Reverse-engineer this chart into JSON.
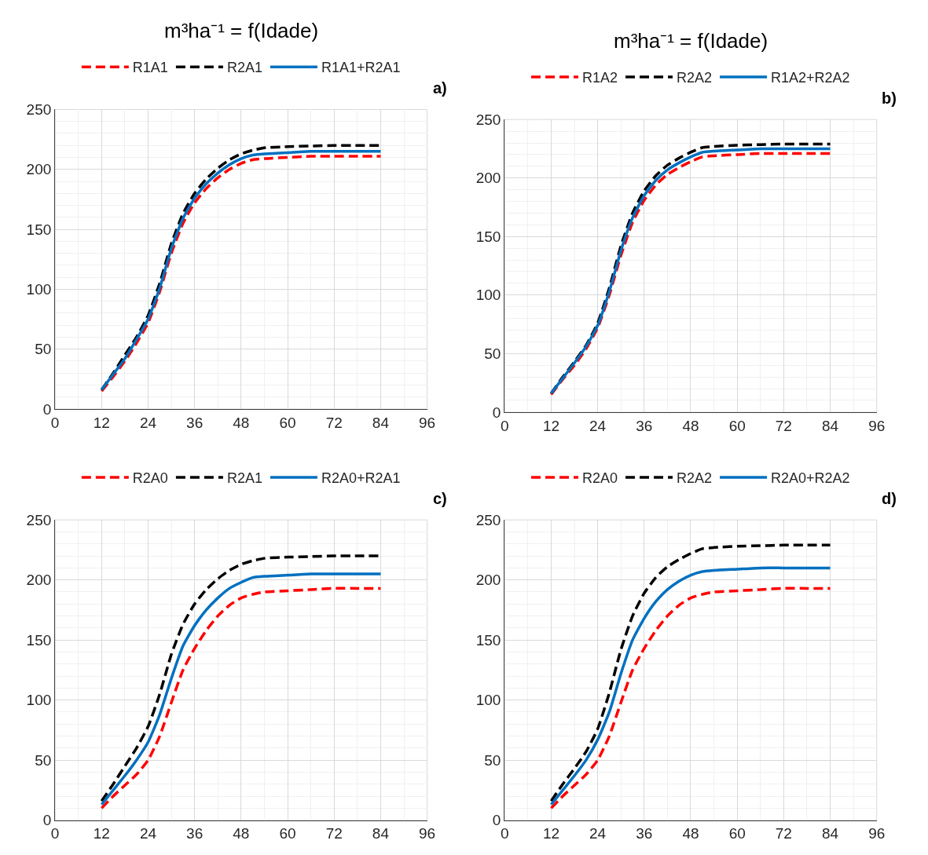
{
  "chart_data": [
    {
      "type": "line",
      "title": "m³ha⁻¹ = f(Idade)",
      "annotations": [
        "a)"
      ],
      "legend": "top",
      "grid": true,
      "line_style": "solid",
      "x": [
        12,
        15,
        18,
        21,
        24,
        27,
        30,
        33,
        36,
        39,
        42,
        45,
        48,
        51,
        54,
        60,
        66,
        72,
        78,
        84
      ],
      "xlim": [
        0,
        96
      ],
      "xticks": [
        0,
        12,
        24,
        36,
        48,
        60,
        72,
        84,
        96
      ],
      "ylim": [
        0,
        250
      ],
      "yticks": [
        0,
        50,
        100,
        150,
        200,
        250
      ],
      "series": [
        {
          "name": "R1A1",
          "color": "#ff0000",
          "line_style": "dashed",
          "values": [
            15,
            27,
            40,
            55,
            72,
            98,
            130,
            155,
            172,
            184,
            193,
            200,
            205,
            208,
            209,
            210,
            211,
            211,
            211,
            211
          ]
        },
        {
          "name": "R2A1",
          "color": "#000000",
          "line_style": "dashed",
          "values": [
            16,
            30,
            45,
            60,
            78,
            105,
            138,
            163,
            180,
            192,
            201,
            208,
            213,
            216,
            218,
            219,
            219.5,
            220,
            220,
            220
          ]
        },
        {
          "name": "R1A1+R2A1",
          "color": "#0070c0",
          "values": [
            16,
            29,
            42,
            58,
            75,
            101,
            134,
            159,
            176,
            188,
            197,
            204,
            209,
            212,
            213,
            214,
            215,
            215,
            215,
            215
          ]
        }
      ]
    },
    {
      "type": "line",
      "title": "m³ha⁻¹ = f(Idade)",
      "annotations": [
        "b)"
      ],
      "legend": "top",
      "grid": true,
      "line_style": "solid",
      "x": [
        12,
        15,
        18,
        21,
        24,
        27,
        30,
        33,
        36,
        39,
        42,
        45,
        48,
        51,
        54,
        60,
        66,
        72,
        78,
        84
      ],
      "xlim": [
        0,
        96
      ],
      "xticks": [
        0,
        12,
        24,
        36,
        48,
        60,
        72,
        84,
        96
      ],
      "ylim": [
        0,
        250
      ],
      "yticks": [
        0,
        50,
        100,
        150,
        200,
        250
      ],
      "series": [
        {
          "name": "R1A2",
          "color": "#ff0000",
          "line_style": "dashed",
          "values": [
            15,
            28,
            40,
            54,
            72,
            100,
            134,
            162,
            181,
            194,
            203,
            209,
            214,
            218,
            219,
            220,
            221,
            221,
            221,
            221
          ]
        },
        {
          "name": "R2A2",
          "color": "#000000",
          "line_style": "dashed",
          "values": [
            16,
            30,
            43,
            57,
            76,
            106,
            142,
            170,
            189,
            202,
            211,
            217,
            222,
            226,
            227,
            228,
            228.5,
            229,
            229,
            229
          ]
        },
        {
          "name": "R1A2+R2A2",
          "color": "#0070c0",
          "values": [
            16,
            29,
            42,
            56,
            74,
            103,
            138,
            166,
            185,
            198,
            207,
            213,
            218,
            222,
            223,
            224,
            225,
            225,
            225,
            225
          ]
        }
      ]
    },
    {
      "type": "line",
      "annotations": [
        "c)"
      ],
      "legend": "top",
      "grid": true,
      "line_style": "solid",
      "x": [
        12,
        15,
        18,
        21,
        24,
        27,
        30,
        33,
        36,
        39,
        42,
        45,
        48,
        51,
        54,
        60,
        66,
        72,
        78,
        84
      ],
      "xlim": [
        0,
        96
      ],
      "xticks": [
        0,
        12,
        24,
        36,
        48,
        60,
        72,
        84,
        96
      ],
      "ylim": [
        0,
        250
      ],
      "yticks": [
        0,
        50,
        100,
        150,
        200,
        250
      ],
      "series": [
        {
          "name": "R2A0",
          "color": "#ff0000",
          "line_style": "dashed",
          "values": [
            10,
            20,
            29,
            38,
            50,
            70,
            98,
            125,
            143,
            158,
            170,
            179,
            185,
            188,
            190,
            191,
            192,
            193,
            193,
            193
          ]
        },
        {
          "name": "R2A1",
          "color": "#000000",
          "line_style": "dashed",
          "values": [
            16,
            30,
            45,
            60,
            78,
            105,
            138,
            163,
            180,
            192,
            201,
            208,
            213,
            216,
            218,
            219,
            219.5,
            220,
            220,
            220
          ]
        },
        {
          "name": "R2A0+R2A1",
          "color": "#0070c0",
          "values": [
            13,
            25,
            37,
            50,
            65,
            88,
            118,
            145,
            162,
            175,
            185,
            193,
            198,
            202,
            203,
            204,
            205,
            205,
            205,
            205
          ]
        }
      ]
    },
    {
      "type": "line",
      "annotations": [
        "d)"
      ],
      "legend": "top",
      "grid": true,
      "line_style": "solid",
      "x": [
        12,
        15,
        18,
        21,
        24,
        27,
        30,
        33,
        36,
        39,
        42,
        45,
        48,
        51,
        54,
        60,
        66,
        72,
        78,
        84
      ],
      "xlim": [
        0,
        96
      ],
      "xticks": [
        0,
        12,
        24,
        36,
        48,
        60,
        72,
        84,
        96
      ],
      "ylim": [
        0,
        250
      ],
      "yticks": [
        0,
        50,
        100,
        150,
        200,
        250
      ],
      "series": [
        {
          "name": "R2A0",
          "color": "#ff0000",
          "line_style": "dashed",
          "values": [
            10,
            20,
            29,
            38,
            50,
            70,
            98,
            125,
            143,
            158,
            170,
            179,
            185,
            188,
            190,
            191,
            192,
            193,
            193,
            193
          ]
        },
        {
          "name": "R2A2",
          "color": "#000000",
          "line_style": "dashed",
          "values": [
            16,
            30,
            43,
            57,
            76,
            106,
            142,
            170,
            189,
            202,
            211,
            217,
            222,
            226,
            227,
            228,
            228.5,
            229,
            229,
            229
          ]
        },
        {
          "name": "R2A0+R2A2",
          "color": "#0070c0",
          "values": [
            13,
            25,
            37,
            50,
            67,
            90,
            122,
            150,
            168,
            182,
            192,
            199,
            204,
            207,
            208,
            209,
            210,
            210,
            210,
            210
          ]
        }
      ]
    }
  ]
}
